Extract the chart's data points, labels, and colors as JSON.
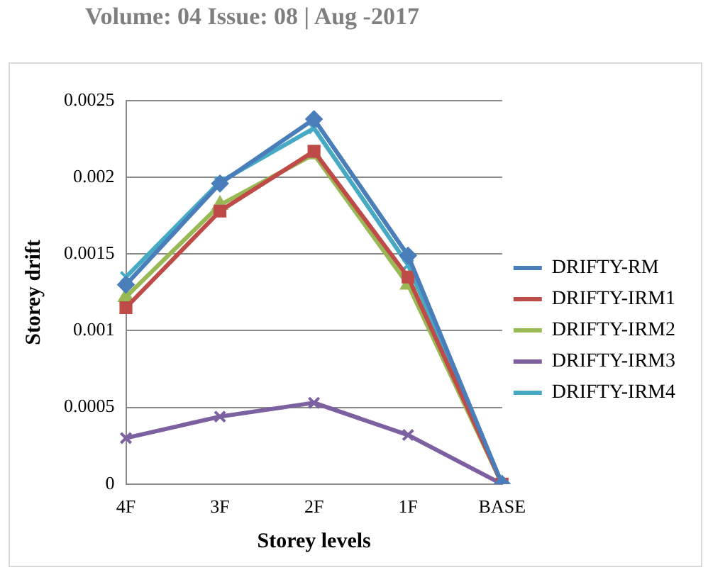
{
  "chart_data": {
    "type": "line",
    "xlabel": "Storey levels",
    "ylabel": "Storey drift",
    "annotations": [
      "Volume: 04 Issue: 08 | Aug -2017"
    ],
    "categories": [
      "4F",
      "3F",
      "2F",
      "1F",
      "BASE"
    ],
    "series": [
      {
        "name": "DRIFTY-RM",
        "color": "#4a7ebb",
        "marker": "diamond",
        "values": [
          0.0013,
          0.00196,
          0.00238,
          0.00149,
          0
        ]
      },
      {
        "name": "DRIFTY-IRM1",
        "color": "#be4b48",
        "marker": "square",
        "values": [
          0.00115,
          0.00178,
          0.00217,
          0.00135,
          0
        ]
      },
      {
        "name": "DRIFTY-IRM2",
        "color": "#98b954",
        "marker": "triangle",
        "values": [
          0.00122,
          0.00182,
          0.00215,
          0.0013,
          0
        ]
      },
      {
        "name": "DRIFTY-IRM3",
        "color": "#7d60a0",
        "marker": "cross",
        "values": [
          0.0003,
          0.00044,
          0.00053,
          0.00032,
          0
        ]
      },
      {
        "name": "DRIFTY-IRM4",
        "color": "#46aac5",
        "marker": "cross",
        "values": [
          0.00135,
          0.00197,
          0.00232,
          0.00143,
          0
        ]
      }
    ],
    "ylim": [
      0,
      0.0025
    ],
    "yticks": [
      0,
      0.0005,
      0.001,
      0.0015,
      0.002,
      0.0025
    ],
    "grid": "y",
    "legend": "right",
    "line_style": "solid"
  }
}
